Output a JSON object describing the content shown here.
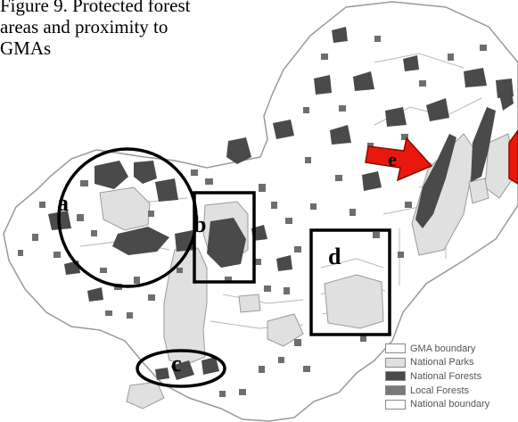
{
  "caption": {
    "lines": [
      "Figure 9. Protected forest",
      "areas and proximity to",
      "GMAs"
    ]
  },
  "map_markers": [
    {
      "id": "a",
      "label": "a",
      "shape": "circle"
    },
    {
      "id": "b",
      "label": "b",
      "shape": "rectangle"
    },
    {
      "id": "c",
      "label": "c",
      "shape": "ellipse"
    },
    {
      "id": "d",
      "label": "d",
      "shape": "rectangle"
    },
    {
      "id": "e",
      "label": "e",
      "shape": "arrow",
      "color": "#e8190c"
    }
  ],
  "legend": {
    "items": [
      {
        "label": "GMA boundary",
        "fill": "#ffffff"
      },
      {
        "label": "National Parks",
        "fill": "#e0e0e0"
      },
      {
        "label": "National Forests",
        "fill": "#4a4a4a"
      },
      {
        "label": "Local Forests",
        "fill": "#7a7a7a"
      },
      {
        "label": "National boundary",
        "fill": "#ffffff"
      }
    ]
  },
  "colors": {
    "national_forest": "#4a4a4a",
    "national_park": "#e0e0e0",
    "boundary": "#a8a8a8",
    "arrow": "#e8190c"
  }
}
